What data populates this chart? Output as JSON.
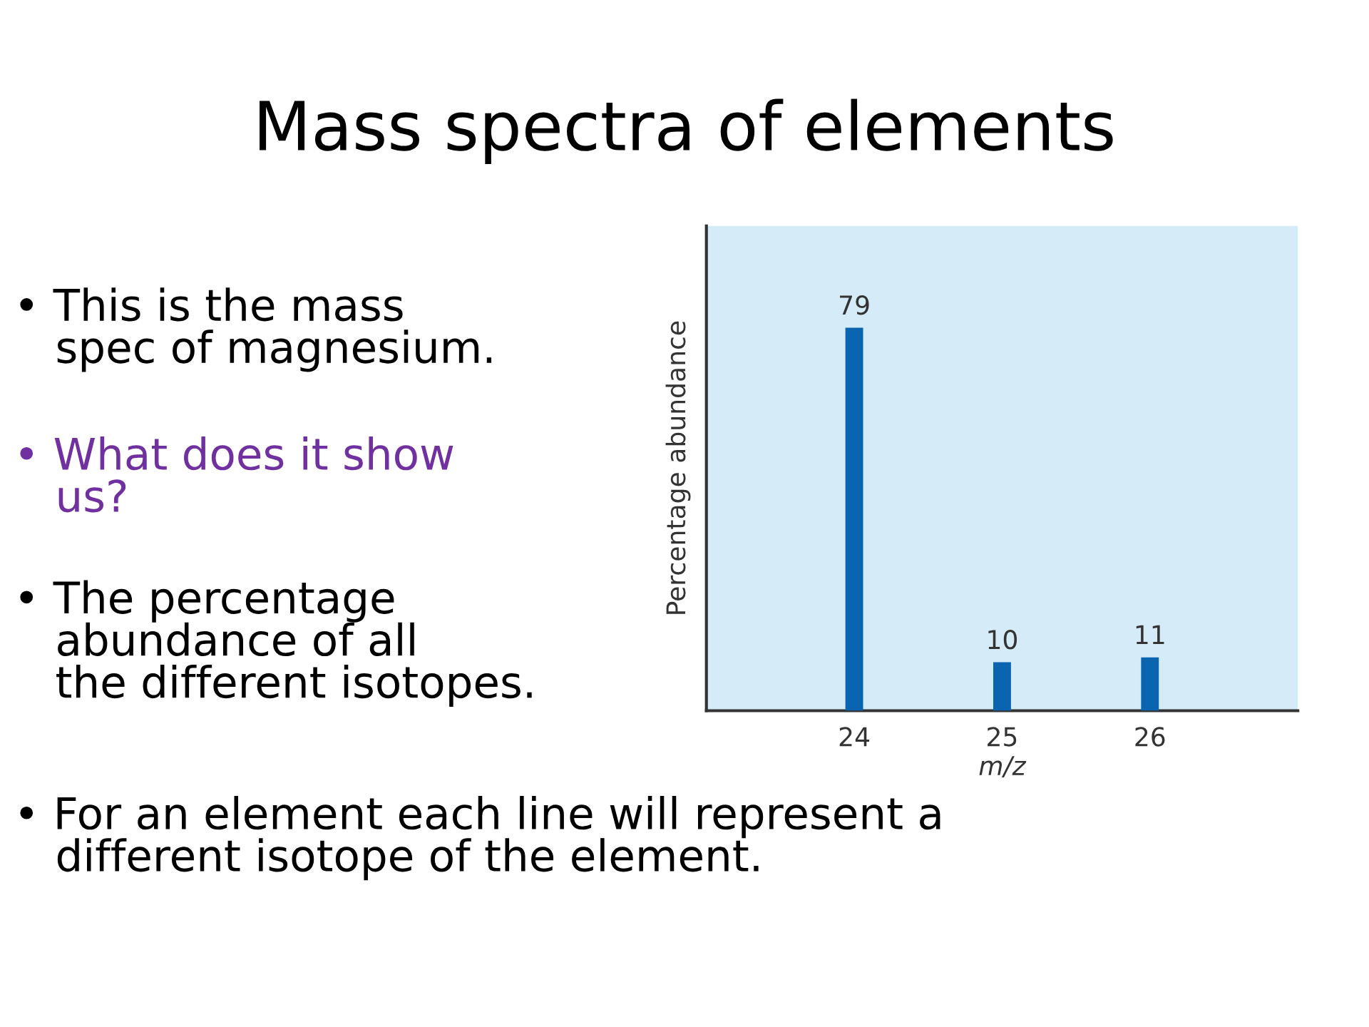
{
  "chart_data": {
    "type": "bar",
    "title": "Mass spectra of elements",
    "x": [
      24,
      25,
      26
    ],
    "values": [
      79,
      10,
      11
    ],
    "color": "#0a64b0",
    "xlim": [
      23,
      27
    ],
    "xticks": [
      24,
      25,
      26
    ],
    "ylim": [
      0,
      100
    ],
    "tick_labels": "x",
    "data_labels": true,
    "xlabel": "m/z",
    "ylabel": "Percentage abundance",
    "annotations": [
      "• This is the mass\n   spec of magnesium.",
      "• What does it show\n   us?",
      "• The percentage\n   abundance of all\n   the different isotopes.",
      "• For an element each line will represent a\n   different isotope of the element."
    ]
  }
}
